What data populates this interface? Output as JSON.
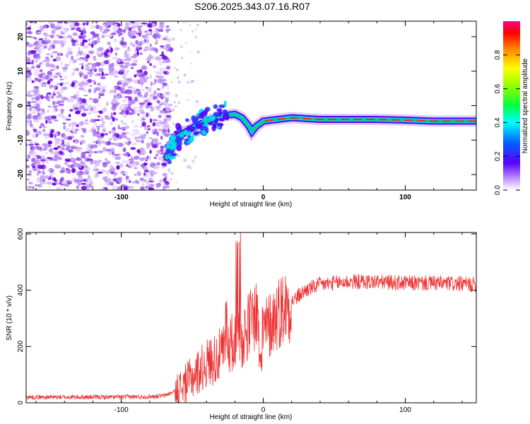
{
  "title": "S206.2025.343.07.16.R07",
  "colors": {
    "snr_line": "#ee3333",
    "spectrogram_ridge": "#00cc88",
    "noise_dark": "#6a00e0",
    "noise_light": "#c9a8f5"
  },
  "chart_data": [
    {
      "type": "heatmap",
      "name": "spectrogram",
      "xlabel": "Height of straight line (km)",
      "ylabel": "Frequency (Hz)",
      "xlim": [
        -167,
        150
      ],
      "ylim": [
        -24.5,
        24.5
      ],
      "x_ticks": [
        -100,
        0,
        100
      ],
      "x_tick_labels": [
        "-100",
        "0",
        "100"
      ],
      "y_ticks": [
        -20,
        -10,
        0,
        10,
        20
      ],
      "y_tick_labels": [
        "-20",
        "-10",
        "0",
        "10",
        "20"
      ],
      "colorbar": {
        "label": "Normalized spectral amplitude",
        "range": [
          0,
          1
        ],
        "ticks": [
          0.0,
          0.2,
          0.4,
          0.6,
          0.8
        ],
        "tick_labels": [
          "0.0",
          "0.2",
          "0.4",
          "0.6",
          "0.8"
        ]
      },
      "ridge": {
        "x": [
          -68,
          -60,
          -50,
          -40,
          -30,
          -20,
          -15,
          -10,
          -8,
          -5,
          0,
          10,
          20,
          40,
          60,
          80,
          100,
          120,
          150
        ],
        "frequency": [
          -15,
          -9,
          -6.5,
          -4.5,
          -3,
          -2.5,
          -3.5,
          -6,
          -7.5,
          -6,
          -4.5,
          -4,
          -3.5,
          -4,
          -4,
          -4,
          -4.2,
          -4.5,
          -4.5
        ]
      }
    },
    {
      "type": "line",
      "name": "snr",
      "xlabel": "Height of straight line (km)",
      "ylabel": "SNR (10 * v/v)",
      "xlim": [
        -167,
        150
      ],
      "ylim": [
        0,
        605
      ],
      "x_ticks": [
        -100,
        0,
        100
      ],
      "x_tick_labels": [
        "-100",
        "0",
        "100"
      ],
      "y_ticks": [
        0,
        200,
        400,
        600
      ],
      "y_tick_labels": [
        "0",
        "200",
        "400",
        "600"
      ],
      "series": [
        {
          "name": "SNR",
          "x": [
            -167,
            -140,
            -110,
            -80,
            -70,
            -60,
            -50,
            -40,
            -30,
            -25,
            -20,
            -18,
            -15,
            -10,
            -5,
            0,
            5,
            10,
            20,
            30,
            40,
            60,
            80,
            100,
            120,
            150
          ],
          "values": [
            20,
            20,
            20,
            22,
            25,
            45,
            90,
            140,
            170,
            200,
            220,
            300,
            230,
            280,
            320,
            250,
            280,
            320,
            360,
            400,
            420,
            430,
            430,
            425,
            425,
            420
          ]
        }
      ]
    }
  ]
}
